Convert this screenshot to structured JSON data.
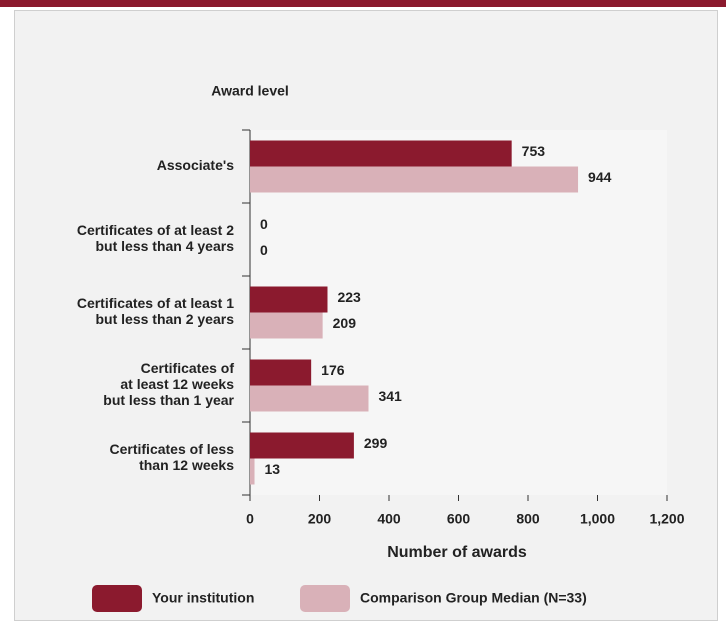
{
  "chart_data": {
    "type": "bar",
    "orientation": "horizontal",
    "y_axis_label": "Award level",
    "x_axis_label": "Number of awards",
    "categories": [
      [
        "Associate's"
      ],
      [
        "Certificates of at least 2",
        "but less than 4 years"
      ],
      [
        "Certificates of at least 1",
        "but less than 2 years"
      ],
      [
        "Certificates of",
        "at least 12 weeks",
        "but less than 1 year"
      ],
      [
        "Certificates of less",
        "than 12 weeks"
      ]
    ],
    "series": [
      {
        "name": "Your institution",
        "color": "#8b1a2e",
        "values": [
          753,
          0,
          223,
          176,
          299
        ]
      },
      {
        "name": "Comparison Group Median (N=33)",
        "color": "#d9b1b8",
        "values": [
          944,
          0,
          209,
          341,
          13
        ]
      }
    ],
    "xlim": [
      0,
      1200
    ],
    "xticks": [
      0,
      200,
      400,
      600,
      800,
      {
        "value": 1000,
        "label": "1,000"
      },
      {
        "value": 1200,
        "label": "1,200"
      }
    ],
    "grid": false,
    "legend": "bottom"
  }
}
